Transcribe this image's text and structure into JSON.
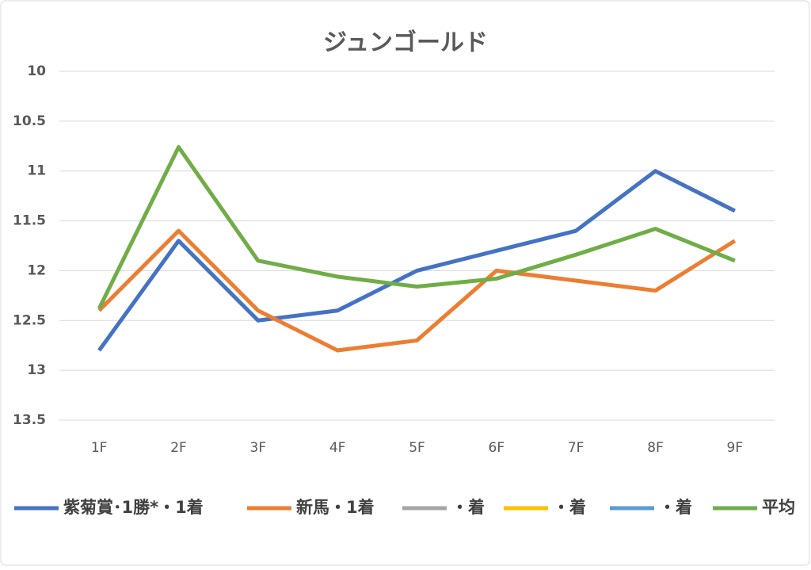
{
  "chart_data": {
    "type": "line",
    "title": "ジュンゴールド",
    "categories": [
      "1F",
      "2F",
      "3F",
      "4F",
      "5F",
      "6F",
      "7F",
      "8F",
      "9F"
    ],
    "series": [
      {
        "name": "紫菊賞･1勝*・1着",
        "color": "#4472c4",
        "values": [
          12.8,
          11.7,
          12.5,
          12.4,
          12.0,
          11.8,
          11.6,
          11.0,
          11.4
        ]
      },
      {
        "name": "新馬・1着",
        "color": "#ed7d31",
        "values": [
          12.4,
          11.6,
          12.4,
          12.8,
          12.7,
          12.0,
          12.1,
          12.2,
          11.7
        ]
      },
      {
        "name": "・着",
        "color": "#a5a5a5",
        "values": [
          null,
          null,
          null,
          null,
          null,
          null,
          null,
          null,
          null
        ]
      },
      {
        "name": "・着",
        "color": "#ffc000",
        "values": [
          null,
          null,
          null,
          null,
          null,
          null,
          null,
          null,
          null
        ]
      },
      {
        "name": "・着",
        "color": "#5b9bd5",
        "values": [
          null,
          null,
          null,
          null,
          null,
          null,
          null,
          null,
          null
        ]
      },
      {
        "name": "平均",
        "color": "#70ad47",
        "values": [
          12.38,
          10.76,
          11.9,
          12.06,
          12.16,
          12.08,
          11.84,
          11.58,
          11.9
        ]
      }
    ],
    "ylim": [
      13.5,
      10
    ],
    "yticks": [
      10,
      10.5,
      11,
      11.5,
      12,
      12.5,
      13,
      13.5
    ],
    "grid": true,
    "legend": "bottom"
  }
}
